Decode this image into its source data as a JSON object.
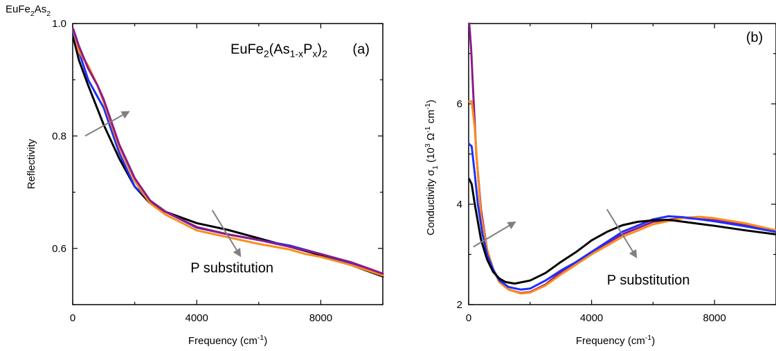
{
  "corner_label": {
    "base": "EuFe",
    "sub1": "2",
    "mid": "As",
    "sub2": "2"
  },
  "colors": {
    "black": "#000000",
    "blue": "#1f2fff",
    "orange": "#ff8c1a",
    "purple": "#8b1a8b",
    "arrow": "#808080"
  },
  "chart_data": [
    {
      "id": "a",
      "type": "line",
      "panel_label": "(a)",
      "formula": {
        "t1": "EuFe",
        "s1": "2",
        "t2": "(As",
        "s2": "1-x",
        "t3": "P",
        "s3": "x",
        "t4": ")",
        "s4": "2"
      },
      "annotation": "P substitution",
      "xlabel": {
        "main": "Frequency (cm",
        "sup": "-1",
        "end": ")"
      },
      "ylabel": "Reflectivity",
      "xlim": [
        0,
        10000
      ],
      "ylim": [
        0.5,
        1.0
      ],
      "xticks": [
        0,
        4000,
        8000
      ],
      "yticks": [
        0.6,
        0.8,
        1.0
      ],
      "ytick_labels": [
        "0.6",
        "0.8",
        "1.0"
      ],
      "series": [
        {
          "color": "black",
          "x": [
            20,
            200,
            500,
            1000,
            1500,
            2000,
            2500,
            3000,
            4000,
            5000,
            6000,
            7000,
            8000,
            9000,
            10000
          ],
          "y": [
            0.975,
            0.935,
            0.89,
            0.82,
            0.76,
            0.71,
            0.68,
            0.665,
            0.645,
            0.633,
            0.618,
            0.603,
            0.588,
            0.57,
            0.55
          ]
        },
        {
          "color": "blue",
          "x": [
            20,
            200,
            500,
            800,
            1000,
            1500,
            2000,
            2500,
            3000,
            4000,
            5000,
            6000,
            7000,
            8000,
            9000,
            10000
          ],
          "y": [
            0.985,
            0.95,
            0.9,
            0.87,
            0.85,
            0.77,
            0.71,
            0.685,
            0.665,
            0.637,
            0.625,
            0.615,
            0.605,
            0.59,
            0.573,
            0.553
          ]
        },
        {
          "color": "orange",
          "x": [
            20,
            200,
            500,
            800,
            1000,
            1500,
            2000,
            2500,
            3000,
            4000,
            5000,
            6000,
            7000,
            7500,
            8000,
            9000,
            10000
          ],
          "y": [
            0.99,
            0.95,
            0.925,
            0.89,
            0.86,
            0.78,
            0.72,
            0.68,
            0.66,
            0.632,
            0.62,
            0.608,
            0.598,
            0.59,
            0.585,
            0.57,
            0.552
          ]
        },
        {
          "color": "purple",
          "x": [
            20,
            200,
            500,
            800,
            1000,
            1500,
            2000,
            2500,
            3000,
            4000,
            5000,
            6000,
            7000,
            8000,
            9000,
            10000
          ],
          "y": [
            0.99,
            0.96,
            0.92,
            0.89,
            0.865,
            0.785,
            0.725,
            0.685,
            0.665,
            0.638,
            0.625,
            0.615,
            0.603,
            0.59,
            0.575,
            0.555
          ]
        }
      ],
      "arrows": [
        {
          "from": [
            400,
            0.8
          ],
          "to": [
            1800,
            0.843
          ]
        },
        {
          "from": [
            4500,
            0.668
          ],
          "to": [
            5400,
            0.587
          ]
        }
      ],
      "formula_pos": [
        5200,
        0.955
      ],
      "label_pos": [
        9300,
        0.955
      ],
      "annot_pos": [
        3800,
        0.557
      ]
    },
    {
      "id": "b",
      "type": "line",
      "panel_label": "(b)",
      "annotation": "P substitution",
      "xlabel": {
        "main": "Frequency (cm",
        "sup": "-1",
        "end": ")"
      },
      "ylabel": {
        "main": "Conductivity σ",
        "sub": "1",
        "mid": " (10",
        "sup1": "3",
        "mid2": " Ω",
        "sup2": "-1",
        "mid3": " cm",
        "sup3": "-1",
        "end": ")"
      },
      "xlim": [
        0,
        10000
      ],
      "ylim": [
        2,
        7.6
      ],
      "xticks": [
        0,
        4000,
        8000
      ],
      "yticks": [
        2,
        4,
        6
      ],
      "ytick_labels": [
        "2",
        "4",
        "6"
      ],
      "series": [
        {
          "color": "purple",
          "x": [
            20,
            80,
            150,
            250,
            400,
            600,
            800,
            1000,
            1300,
            1700,
            2000,
            2500,
            3000,
            4000,
            5000,
            6000,
            7000,
            8000,
            9000,
            10000
          ],
          "y": [
            7.6,
            7.1,
            6.2,
            5.0,
            3.9,
            3.1,
            2.7,
            2.45,
            2.3,
            2.23,
            2.25,
            2.4,
            2.65,
            3.05,
            3.4,
            3.65,
            3.73,
            3.68,
            3.58,
            3.47
          ]
        },
        {
          "color": "orange",
          "x": [
            20,
            100,
            200,
            300,
            400,
            600,
            800,
            1000,
            1300,
            1700,
            2000,
            2500,
            3000,
            4000,
            5000,
            6000,
            7000,
            7500,
            8000,
            9000,
            10000
          ],
          "y": [
            6.05,
            6.05,
            5.5,
            4.6,
            3.8,
            3.1,
            2.7,
            2.45,
            2.3,
            2.22,
            2.24,
            2.38,
            2.6,
            3.0,
            3.35,
            3.6,
            3.73,
            3.75,
            3.72,
            3.62,
            3.48
          ]
        },
        {
          "color": "blue",
          "x": [
            20,
            100,
            200,
            300,
            450,
            600,
            800,
            1000,
            1300,
            1700,
            2000,
            2500,
            3000,
            3500,
            4000,
            5000,
            6000,
            6500,
            7000,
            8000,
            9000,
            10000
          ],
          "y": [
            5.2,
            5.15,
            4.6,
            4.0,
            3.4,
            3.0,
            2.7,
            2.48,
            2.35,
            2.3,
            2.32,
            2.48,
            2.68,
            2.85,
            3.05,
            3.45,
            3.7,
            3.76,
            3.74,
            3.66,
            3.56,
            3.45
          ]
        },
        {
          "color": "black",
          "x": [
            20,
            100,
            200,
            400,
            600,
            800,
            1000,
            1200,
            1500,
            2000,
            2500,
            3000,
            3500,
            4000,
            4500,
            5000,
            5500,
            6000,
            6500,
            7000,
            8000,
            9000,
            10000
          ],
          "y": [
            4.5,
            4.4,
            4.0,
            3.3,
            2.9,
            2.65,
            2.52,
            2.45,
            2.42,
            2.48,
            2.63,
            2.85,
            3.05,
            3.28,
            3.45,
            3.58,
            3.65,
            3.68,
            3.69,
            3.65,
            3.57,
            3.48,
            3.4
          ]
        }
      ],
      "arrows": [
        {
          "from": [
            150,
            3.15
          ],
          "to": [
            1500,
            3.64
          ]
        },
        {
          "from": [
            4500,
            3.9
          ],
          "to": [
            5450,
            2.95
          ]
        }
      ],
      "label_pos": [
        9300,
        7.33
      ],
      "annot_pos": [
        4500,
        2.4
      ]
    }
  ]
}
